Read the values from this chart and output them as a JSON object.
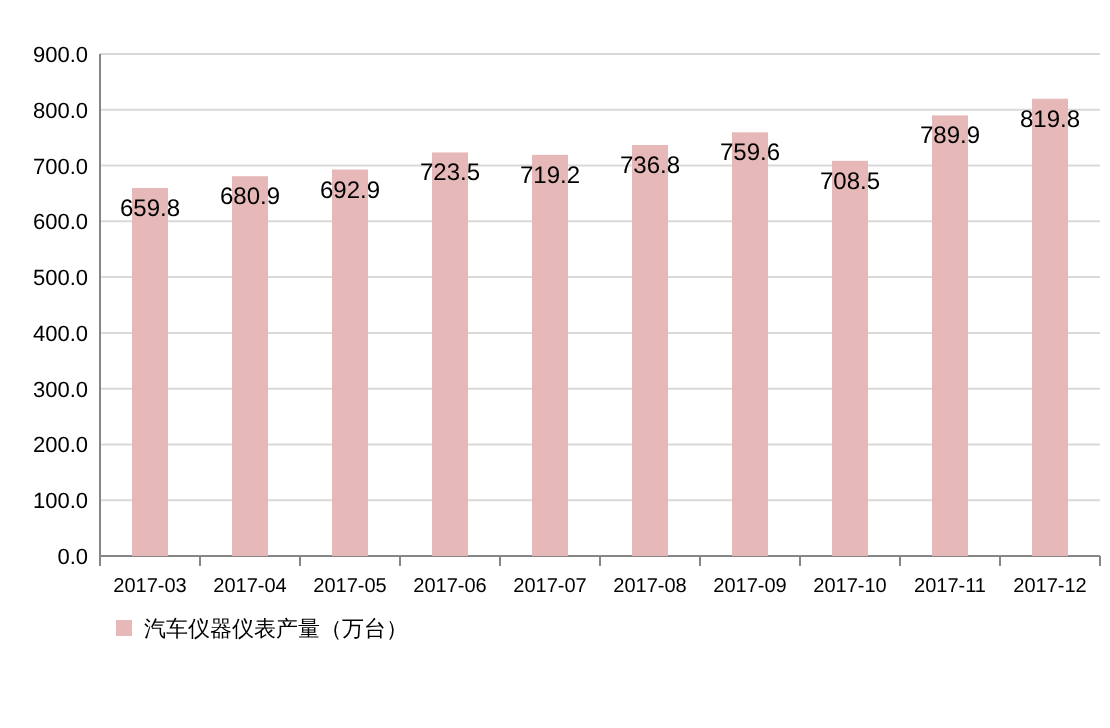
{
  "chart_data": {
    "type": "bar",
    "categories": [
      "2017-03",
      "2017-04",
      "2017-05",
      "2017-06",
      "2017-07",
      "2017-08",
      "2017-09",
      "2017-10",
      "2017-11",
      "2017-12"
    ],
    "series": [
      {
        "name": "汽车仪器仪表产量（万台）",
        "color": "#e6b8b7",
        "values": [
          659.8,
          680.9,
          692.9,
          723.5,
          719.2,
          736.8,
          759.6,
          708.5,
          789.9,
          819.8
        ]
      }
    ],
    "ylim": [
      0,
      900
    ],
    "yticks": [
      {
        "value": 0,
        "label": "0.0"
      },
      {
        "value": 100,
        "label": "100.0"
      },
      {
        "value": 200,
        "label": "200.0"
      },
      {
        "value": 300,
        "label": "300.0"
      },
      {
        "value": 400,
        "label": "400.0"
      },
      {
        "value": 500,
        "label": "500.0"
      },
      {
        "value": 600,
        "label": "600.0"
      },
      {
        "value": 700,
        "label": "700.0"
      },
      {
        "value": 800,
        "label": "800.0"
      },
      {
        "value": 900,
        "label": "900.0"
      }
    ],
    "grid": "y",
    "legend": "bottom left",
    "data_labels": true
  }
}
